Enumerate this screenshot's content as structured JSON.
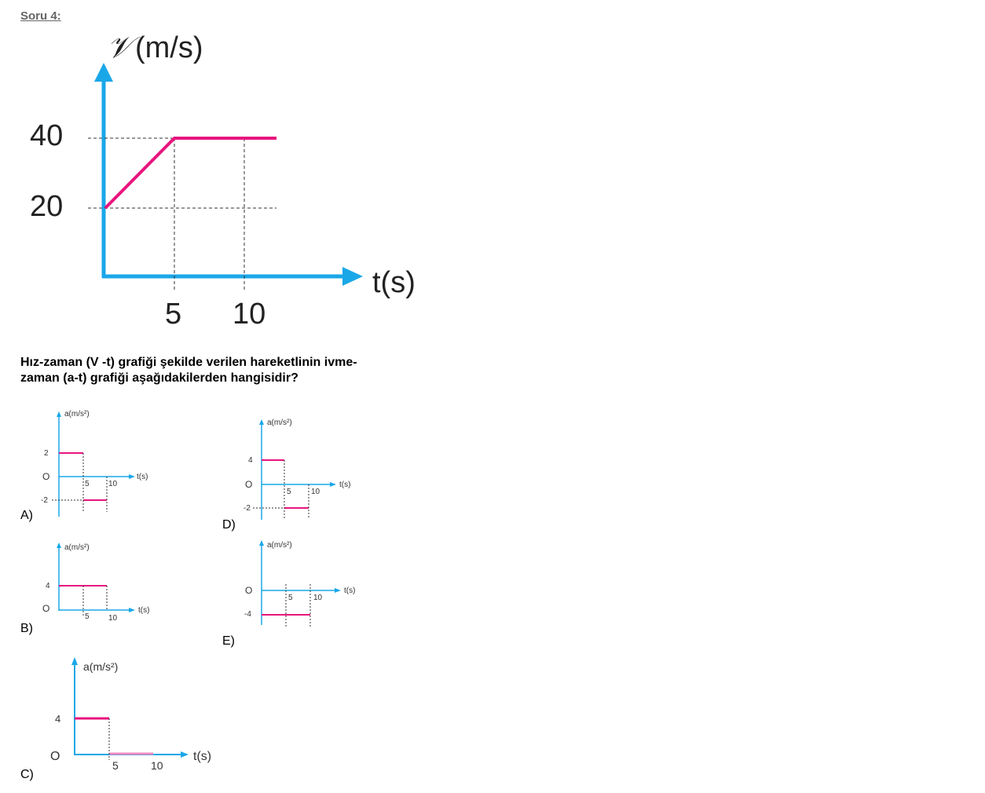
{
  "question_title": "Soru 4:",
  "question_text_line1": "Hız-zaman (V -t) grafiği şekilde verilen hareketlinin ivme-",
  "question_text_line2": "zaman (a-t) grafiği aşağıdakilerden hangisidir?",
  "colors": {
    "axis": "#1aa7e8",
    "curve": "#e8157e",
    "dashed": "#333333",
    "text": "#222222"
  },
  "main_graph": {
    "y_label_symbol": "𝒱",
    "y_label_unit": "(m/s)",
    "x_label": "t(s)",
    "y_ticks": [
      "40",
      "20"
    ],
    "x_ticks": [
      "5",
      "10"
    ]
  },
  "chart_data": {
    "type": "line",
    "x": [
      0,
      5,
      12
    ],
    "y": [
      20,
      40,
      40
    ],
    "xlabel": "t(s)",
    "ylabel": "𝒱 (m/s)"
  },
  "choices": [
    {
      "letter": "A)",
      "ylabel": "a(m/s²)",
      "xlabel": "t(s)",
      "origin": "O",
      "ticks_y": [
        "2",
        "-2"
      ],
      "ticks_x": [
        "5",
        "10"
      ]
    },
    {
      "letter": "B)",
      "ylabel": "a(m/s²)",
      "xlabel": "t(s)",
      "origin": "O",
      "ticks_y": [
        "4"
      ],
      "ticks_x": [
        "5",
        "10"
      ]
    },
    {
      "letter": "C)",
      "ylabel": "a(m/s²)",
      "xlabel": "t(s)",
      "origin": "O",
      "ticks_y": [
        "4"
      ],
      "ticks_x": [
        "5",
        "10"
      ]
    },
    {
      "letter": "D)",
      "ylabel": "a(m/s²)",
      "xlabel": "t(s)",
      "origin": "O",
      "ticks_y": [
        "4",
        "-2"
      ],
      "ticks_x": [
        "5",
        "10"
      ]
    },
    {
      "letter": "E)",
      "ylabel": "a(m/s²)",
      "xlabel": "t(s)",
      "origin": "O",
      "ticks_y": [
        "-4"
      ],
      "ticks_x": [
        "5",
        "10"
      ]
    }
  ]
}
